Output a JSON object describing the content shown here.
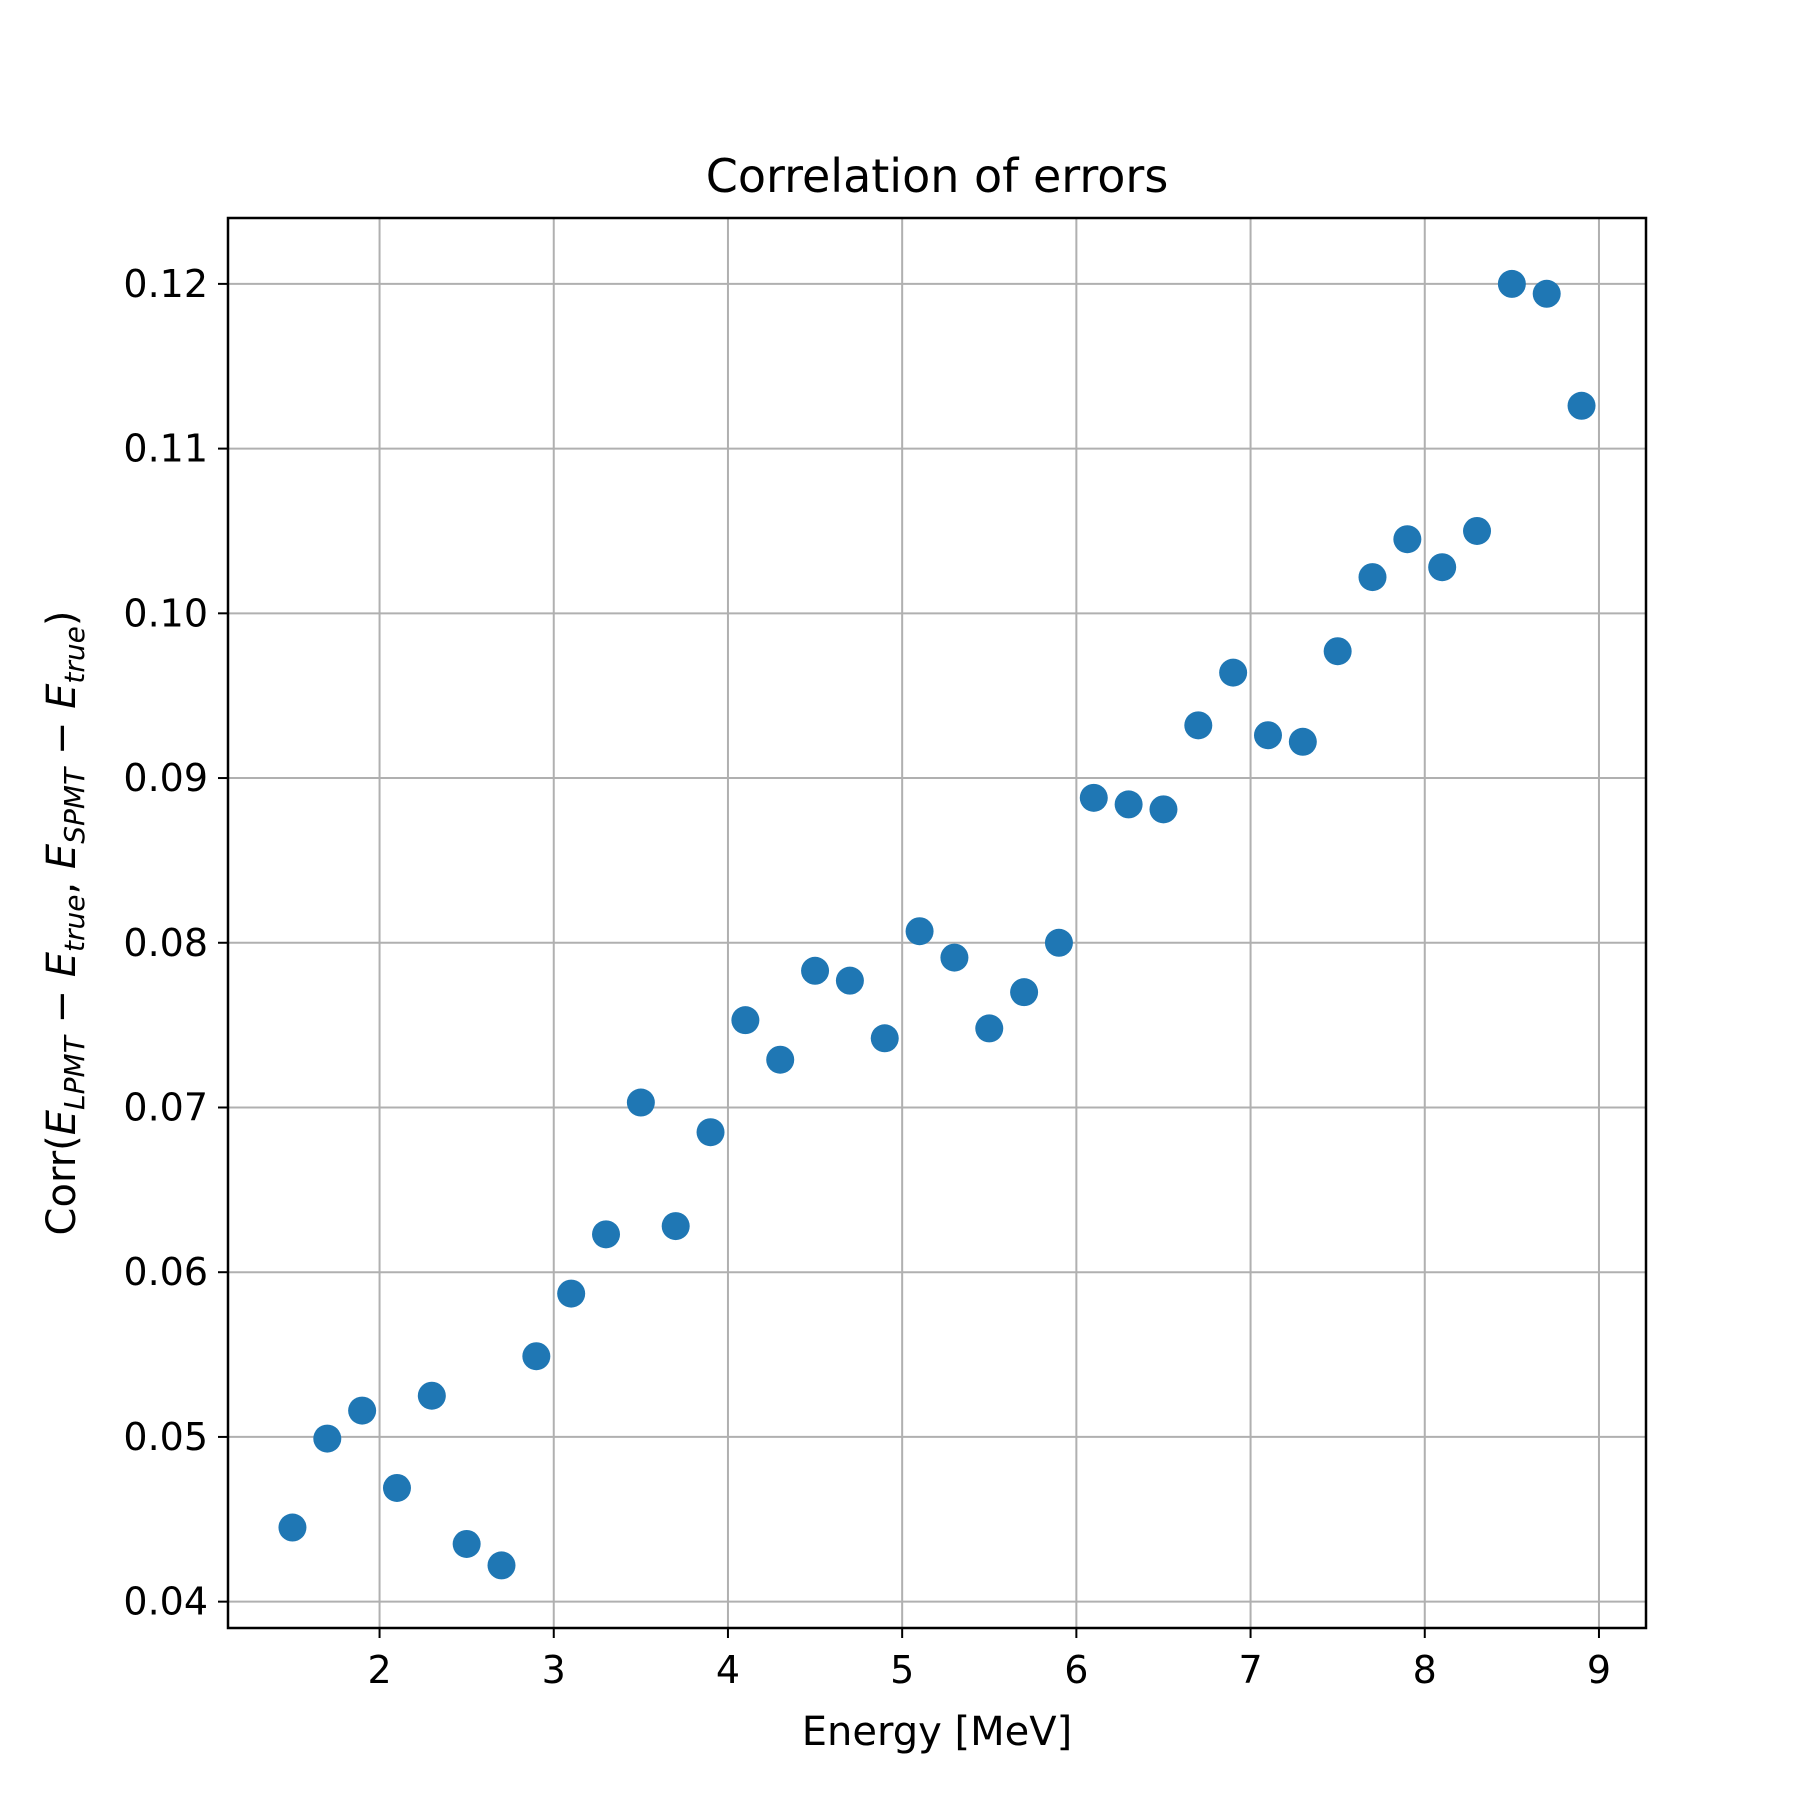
{
  "chart_data": {
    "type": "scatter",
    "title": "Correlation of errors",
    "xlabel": "Energy [MeV]",
    "ylabel_parts": [
      {
        "t": "Corr(",
        "s": "n"
      },
      {
        "t": "E",
        "s": "i"
      },
      {
        "t": "LPMT",
        "s": "sub"
      },
      {
        "t": " − ",
        "s": "n"
      },
      {
        "t": "E",
        "s": "i"
      },
      {
        "t": "true",
        "s": "sub"
      },
      {
        "t": ", ",
        "s": "n"
      },
      {
        "t": "E",
        "s": "i"
      },
      {
        "t": "SPMT",
        "s": "sub"
      },
      {
        "t": " − ",
        "s": "n"
      },
      {
        "t": "E",
        "s": "i"
      },
      {
        "t": "true",
        "s": "sub"
      },
      {
        "t": ")",
        "s": "n"
      }
    ],
    "xlim": [
      1.13,
      9.27
    ],
    "ylim": [
      0.0384,
      0.124
    ],
    "xticks": [
      2,
      3,
      4,
      5,
      6,
      7,
      8,
      9
    ],
    "xtick_labels": [
      "2",
      "3",
      "4",
      "5",
      "6",
      "7",
      "8",
      "9"
    ],
    "yticks": [
      0.04,
      0.05,
      0.06,
      0.07,
      0.08,
      0.09,
      0.1,
      0.11,
      0.12
    ],
    "ytick_labels": [
      "0.04",
      "0.05",
      "0.06",
      "0.07",
      "0.08",
      "0.09",
      "0.10",
      "0.11",
      "0.12"
    ],
    "grid": true,
    "marker_color": "#1f77b4",
    "series": [
      {
        "x": [
          1.5,
          1.7,
          1.9,
          2.1,
          2.3,
          2.5,
          2.7,
          2.9,
          3.1,
          3.3,
          3.5,
          3.7,
          3.9,
          4.1,
          4.3,
          4.5,
          4.7,
          4.9,
          5.1,
          5.3,
          5.5,
          5.7,
          5.9,
          6.1,
          6.3,
          6.5,
          6.7,
          6.9,
          7.1,
          7.3,
          7.5,
          7.7,
          7.9,
          8.1,
          8.3,
          8.5,
          8.7,
          8.9
        ],
        "y": [
          0.0445,
          0.0499,
          0.0516,
          0.0469,
          0.0525,
          0.0435,
          0.0422,
          0.0549,
          0.0587,
          0.0623,
          0.0703,
          0.0628,
          0.0685,
          0.0753,
          0.0729,
          0.0783,
          0.0777,
          0.0742,
          0.0807,
          0.0791,
          0.0748,
          0.077,
          0.08,
          0.0888,
          0.0884,
          0.0881,
          0.0932,
          0.0964,
          0.0926,
          0.0922,
          0.0977,
          0.1022,
          0.1045,
          0.1028,
          0.105,
          0.12,
          0.1194,
          0.1126
        ]
      }
    ]
  }
}
